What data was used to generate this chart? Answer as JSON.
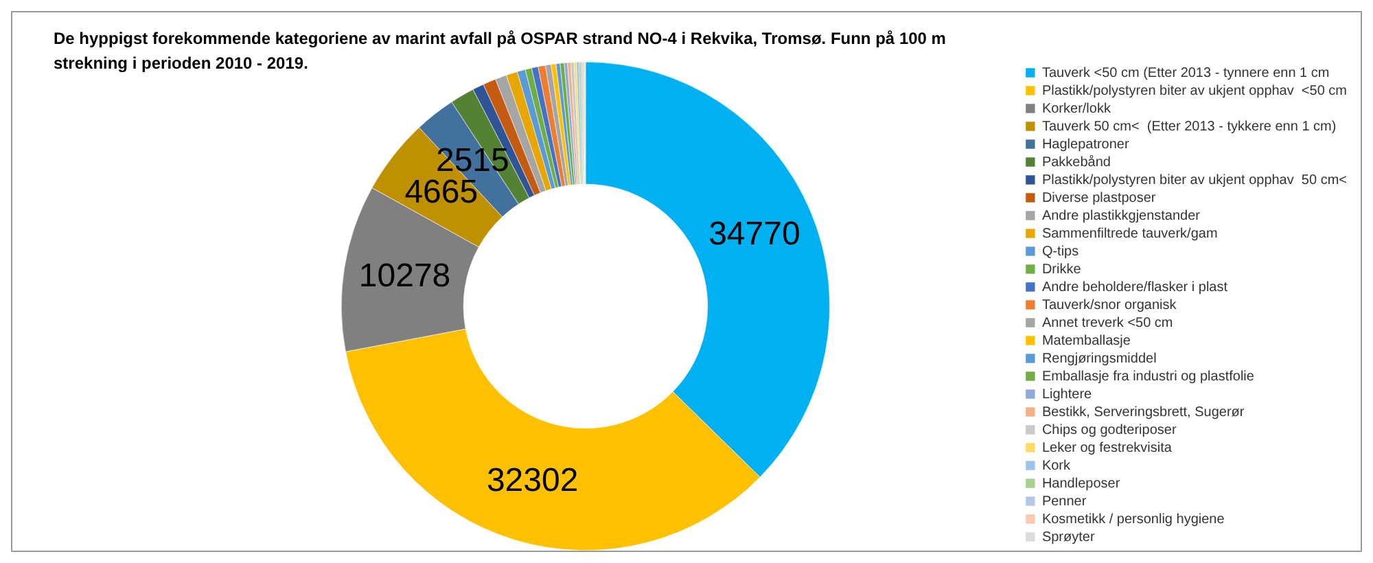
{
  "chart_data": {
    "type": "donut",
    "title": "De hyppigst forekommende kategoriene av marint avfall på OSPAR strand NO-4 i Rekvika, Tromsø. Funn på 100 m strekning i perioden 2010  - 2019.",
    "categories": [
      "Tauverk <50 cm (Etter 2013 - tynnere enn 1 cm",
      "Plastikk/polystyren biter av ukjent opphav  <50 cm",
      "Korker/lokk",
      "Tauverk 50 cm<  (Etter 2013 - tykkere enn 1 cm)",
      "Haglepatroner",
      "Pakkebånd",
      "Plastikk/polystyren biter av ukjent opphav  50 cm<",
      "Diverse plastposer",
      "Andre plastikkgjenstander",
      "Sammenfiltrede tauverk/gam",
      "Q-tips",
      "Drikke",
      "Andre beholdere/flasker i plast",
      "Tauverk/snor organisk",
      "Annet treverk <50 cm",
      "Matemballasje",
      "Rengjøringsmiddel",
      "Emballasje fra industri og plastfolie",
      "Lightere",
      "Bestikk, Serveringsbrett, Sugerør",
      "Chips og godteriposer",
      "Leker og festrekvisita",
      "Kork",
      "Handleposer",
      "Penner",
      "Kosmetikk / personlig hygiene",
      "Sprøyter"
    ],
    "values": [
      34770,
      32302,
      10278,
      4665,
      2515,
      1500,
      700,
      800,
      700,
      700,
      500,
      400,
      400,
      450,
      350,
      300,
      250,
      250,
      200,
      200,
      200,
      150,
      150,
      120,
      100,
      100,
      80
    ],
    "value_labels": [
      "34770",
      "32302",
      "10278",
      "4665",
      "2515",
      null,
      null,
      null,
      null,
      null,
      null,
      null,
      null,
      null,
      null,
      null,
      null,
      null,
      null,
      null,
      null,
      null,
      null,
      null,
      null,
      null,
      null
    ],
    "colors": [
      "#00b0f0",
      "#ffc000",
      "#808080",
      "#bf9000",
      "#41719c",
      "#548235",
      "#2f5597",
      "#c55a11",
      "#a5a5a5",
      "#e7a700",
      "#5b9bd5",
      "#70ad47",
      "#4472c4",
      "#ed7d31",
      "#a5a5a5",
      "#ffc000",
      "#5b9bd5",
      "#70ad47",
      "#8faadc",
      "#f4b183",
      "#c9c9c9",
      "#ffd966",
      "#9dc3e6",
      "#a9d18e",
      "#b4c7e7",
      "#f8cbad",
      "#dbdbdb"
    ],
    "legend": "right"
  }
}
